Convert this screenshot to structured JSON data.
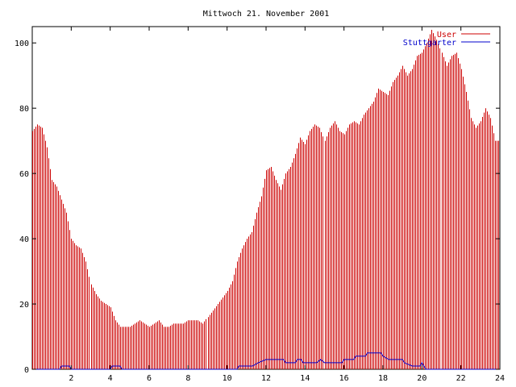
{
  "chart_data": {
    "type": "bar",
    "title": "Mittwoch 21. November 2001",
    "xlabel": "",
    "ylabel": "",
    "xlim": [
      0,
      24
    ],
    "ylim": [
      0,
      105
    ],
    "x_ticks": [
      2,
      4,
      6,
      8,
      10,
      12,
      14,
      16,
      18,
      20,
      22,
      24
    ],
    "y_ticks": [
      0,
      20,
      40,
      60,
      80,
      100
    ],
    "legend_position": "top-right",
    "grid": false,
    "series": [
      {
        "name": "User",
        "type": "bar",
        "color": "#cc0000",
        "points": [
          [
            0.0,
            73
          ],
          [
            0.25,
            75
          ],
          [
            0.5,
            74
          ],
          [
            0.75,
            68
          ],
          [
            1.0,
            58
          ],
          [
            1.25,
            56
          ],
          [
            1.5,
            52
          ],
          [
            1.75,
            48
          ],
          [
            2.0,
            40
          ],
          [
            2.25,
            38
          ],
          [
            2.5,
            37
          ],
          [
            2.75,
            33
          ],
          [
            3.0,
            26
          ],
          [
            3.25,
            23
          ],
          [
            3.5,
            21
          ],
          [
            3.75,
            20
          ],
          [
            4.0,
            19
          ],
          [
            4.25,
            15
          ],
          [
            4.5,
            13
          ],
          [
            4.75,
            13
          ],
          [
            5.0,
            13
          ],
          [
            5.25,
            14
          ],
          [
            5.5,
            15
          ],
          [
            5.75,
            14
          ],
          [
            6.0,
            13
          ],
          [
            6.25,
            14
          ],
          [
            6.5,
            15
          ],
          [
            6.75,
            13
          ],
          [
            7.0,
            13
          ],
          [
            7.25,
            14
          ],
          [
            7.5,
            14
          ],
          [
            7.75,
            14
          ],
          [
            8.0,
            15
          ],
          [
            8.25,
            15
          ],
          [
            8.5,
            15
          ],
          [
            8.75,
            14
          ],
          [
            9.0,
            16
          ],
          [
            9.25,
            18
          ],
          [
            9.5,
            20
          ],
          [
            9.75,
            22
          ],
          [
            10.0,
            24
          ],
          [
            10.25,
            27
          ],
          [
            10.5,
            33
          ],
          [
            10.75,
            37
          ],
          [
            11.0,
            40
          ],
          [
            11.25,
            42
          ],
          [
            11.5,
            48
          ],
          [
            11.75,
            53
          ],
          [
            12.0,
            61
          ],
          [
            12.25,
            62
          ],
          [
            12.5,
            58
          ],
          [
            12.75,
            55
          ],
          [
            13.0,
            60
          ],
          [
            13.25,
            62
          ],
          [
            13.5,
            66
          ],
          [
            13.75,
            71
          ],
          [
            14.0,
            69
          ],
          [
            14.25,
            73
          ],
          [
            14.5,
            75
          ],
          [
            14.75,
            74
          ],
          [
            15.0,
            70
          ],
          [
            15.25,
            74
          ],
          [
            15.5,
            76
          ],
          [
            15.75,
            73
          ],
          [
            16.0,
            72
          ],
          [
            16.25,
            75
          ],
          [
            16.5,
            76
          ],
          [
            16.75,
            75
          ],
          [
            17.0,
            78
          ],
          [
            17.25,
            80
          ],
          [
            17.5,
            82
          ],
          [
            17.75,
            86
          ],
          [
            18.0,
            85
          ],
          [
            18.25,
            84
          ],
          [
            18.5,
            88
          ],
          [
            18.75,
            90
          ],
          [
            19.0,
            93
          ],
          [
            19.25,
            90
          ],
          [
            19.5,
            92
          ],
          [
            19.75,
            96
          ],
          [
            20.0,
            97
          ],
          [
            20.25,
            100
          ],
          [
            20.5,
            104
          ],
          [
            20.75,
            101
          ],
          [
            21.0,
            97
          ],
          [
            21.25,
            93
          ],
          [
            21.5,
            96
          ],
          [
            21.75,
            97
          ],
          [
            22.0,
            92
          ],
          [
            22.25,
            85
          ],
          [
            22.5,
            77
          ],
          [
            22.75,
            74
          ],
          [
            23.0,
            76
          ],
          [
            23.25,
            80
          ],
          [
            23.5,
            77
          ],
          [
            23.75,
            70
          ]
        ]
      },
      {
        "name": "Stuttgarter",
        "type": "line",
        "color": "#0000cc",
        "points": [
          [
            0.0,
            0
          ],
          [
            1.4,
            0
          ],
          [
            1.5,
            1
          ],
          [
            1.9,
            1
          ],
          [
            2.0,
            0
          ],
          [
            4.0,
            0
          ],
          [
            4.1,
            1
          ],
          [
            4.5,
            1
          ],
          [
            4.6,
            0
          ],
          [
            10.5,
            0
          ],
          [
            10.6,
            1
          ],
          [
            11.3,
            1
          ],
          [
            11.6,
            2
          ],
          [
            12.0,
            3
          ],
          [
            12.9,
            3
          ],
          [
            13.0,
            2
          ],
          [
            13.5,
            2
          ],
          [
            13.6,
            3
          ],
          [
            13.8,
            3
          ],
          [
            13.9,
            2
          ],
          [
            14.6,
            2
          ],
          [
            14.8,
            3
          ],
          [
            15.0,
            2
          ],
          [
            15.9,
            2
          ],
          [
            16.0,
            3
          ],
          [
            16.5,
            3
          ],
          [
            16.6,
            4
          ],
          [
            17.1,
            4
          ],
          [
            17.2,
            5
          ],
          [
            17.9,
            5
          ],
          [
            18.0,
            4
          ],
          [
            18.3,
            3
          ],
          [
            19.0,
            3
          ],
          [
            19.1,
            2
          ],
          [
            19.5,
            1
          ],
          [
            19.9,
            1
          ],
          [
            20.0,
            2
          ],
          [
            20.2,
            0
          ],
          [
            24.0,
            0
          ]
        ]
      }
    ]
  }
}
